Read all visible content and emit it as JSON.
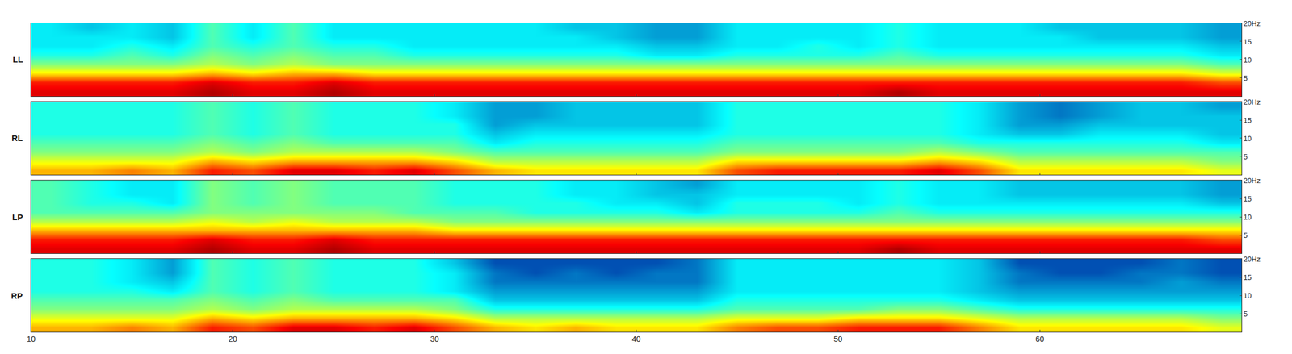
{
  "chart_data": {
    "type": "heatmap",
    "color": "Jet",
    "x": [
      11,
      13,
      15,
      17,
      19,
      21,
      23,
      25,
      27,
      29,
      31,
      33,
      35,
      37,
      39,
      41,
      43,
      45,
      47,
      49,
      51,
      53,
      55,
      57,
      59,
      61,
      63,
      65,
      67,
      69
    ],
    "y": [
      1.25,
      3.75,
      6.25,
      8.75,
      11.25,
      13.75,
      16.25,
      18.75
    ],
    "xlim": [
      10,
      70
    ],
    "xticks": [
      10,
      20,
      30,
      40,
      50,
      60
    ],
    "ylim": [
      0,
      20
    ],
    "yticks": [
      5,
      10,
      15,
      {
        "value": 20,
        "label": "20Hz"
      }
    ],
    "zlim": [
      0,
      10
    ],
    "panels": [
      {
        "name": "LL",
        "z": [
          [
            9,
            9,
            9,
            9,
            9.5,
            9,
            9,
            9.5,
            9,
            9,
            9,
            9,
            9,
            9,
            9,
            9,
            9,
            9,
            9,
            9,
            9,
            9.5,
            9,
            9,
            9,
            9,
            9,
            9,
            9,
            9
          ],
          [
            8.5,
            8.5,
            8.5,
            8.5,
            9,
            8.5,
            8.5,
            9,
            8.5,
            8.5,
            8.5,
            8.5,
            8.5,
            8.5,
            8.5,
            8.5,
            8.5,
            8.5,
            8.5,
            8.5,
            8.5,
            8.5,
            8.5,
            8.5,
            8.5,
            8.5,
            8.5,
            8.5,
            8.5,
            8
          ],
          [
            6.5,
            6.5,
            6.5,
            6.5,
            7,
            6.5,
            7,
            7,
            6.5,
            6.5,
            6.5,
            6.5,
            6.5,
            6.5,
            6.5,
            6.5,
            6.5,
            6.5,
            6.5,
            6.5,
            6.5,
            6.5,
            6.5,
            6.5,
            6.5,
            6.5,
            6.5,
            6.5,
            6.5,
            6
          ],
          [
            5,
            5,
            5,
            5,
            5.5,
            5,
            5.5,
            5,
            5,
            5,
            5,
            5,
            5,
            5,
            5,
            5,
            5,
            5,
            5,
            5,
            5,
            5,
            5,
            5,
            5,
            5,
            5,
            5,
            5,
            4.5
          ],
          [
            4,
            4,
            4.5,
            4,
            5,
            4.5,
            5,
            4.5,
            4.5,
            4,
            4,
            4,
            4,
            4,
            4,
            3.5,
            3.5,
            4,
            4,
            4,
            4,
            4.5,
            4,
            4,
            4,
            4,
            4,
            4,
            4,
            3.5
          ],
          [
            3.5,
            3.5,
            4,
            3.5,
            4.5,
            4,
            4.5,
            4,
            4,
            3.5,
            3.5,
            3.5,
            3.5,
            3.5,
            3.5,
            3,
            3,
            3.5,
            3.5,
            4,
            3.5,
            4,
            3.5,
            3.5,
            3.5,
            3.5,
            3.5,
            3.5,
            3.5,
            3
          ],
          [
            3.5,
            3.5,
            3.5,
            3,
            4.5,
            3.5,
            4.5,
            3.5,
            3.5,
            3.5,
            3.5,
            3.5,
            3.5,
            3.5,
            3,
            2.5,
            2.5,
            3.5,
            3.5,
            3.5,
            3.5,
            4,
            3.5,
            3.5,
            3.5,
            3.5,
            3,
            3,
            3,
            2.5
          ],
          [
            3.5,
            3,
            3.5,
            3,
            4.5,
            3.5,
            4.5,
            3.5,
            3.5,
            3.5,
            3.5,
            3.5,
            3.5,
            3,
            3,
            2.5,
            2.5,
            3.5,
            3.5,
            3.5,
            3.5,
            4,
            3.5,
            3.5,
            3.5,
            3,
            3,
            3,
            3,
            2.5
          ]
        ]
      },
      {
        "name": "RL",
        "z": [
          [
            7,
            7,
            7.5,
            7,
            8.5,
            8,
            9,
            9,
            8.5,
            9,
            8,
            7,
            6.5,
            6.5,
            6.5,
            6.5,
            6.5,
            8,
            8.5,
            8.5,
            8.5,
            8.5,
            9,
            8,
            6.5,
            6.5,
            6.5,
            6.5,
            6.5,
            6
          ],
          [
            6,
            6,
            6,
            6,
            7,
            6.5,
            7,
            7,
            7,
            7,
            6.5,
            5.5,
            5.5,
            5.5,
            5.5,
            5.5,
            5.5,
            6.5,
            6.5,
            6.5,
            6.5,
            6.5,
            7,
            6.5,
            5.5,
            5.5,
            5.5,
            5.5,
            5.5,
            5
          ],
          [
            5,
            5,
            5,
            5,
            5.5,
            5,
            5.5,
            5.5,
            5.5,
            5.5,
            5,
            4.5,
            4.5,
            4.5,
            4.5,
            4.5,
            4.5,
            5,
            5,
            5,
            5,
            5,
            5.5,
            5,
            4.5,
            4.5,
            4.5,
            4.5,
            4.5,
            4.5
          ],
          [
            4.5,
            4.5,
            4.5,
            4.5,
            5,
            4.5,
            5,
            4.5,
            4.5,
            4.5,
            4.5,
            3.5,
            4,
            4,
            4,
            4,
            4,
            4.5,
            4.5,
            4.5,
            4.5,
            4.5,
            4.5,
            4,
            4,
            4,
            4,
            4,
            4,
            3.5
          ],
          [
            4,
            4,
            4,
            4,
            4.5,
            4,
            4.5,
            4,
            4,
            4,
            4,
            3,
            3.5,
            3.5,
            3.5,
            3.5,
            3.5,
            4,
            4,
            4,
            4,
            4,
            4,
            3.5,
            3,
            3,
            3.5,
            3.5,
            3.5,
            3
          ],
          [
            4,
            4,
            4,
            4,
            4.5,
            4,
            4.5,
            4,
            4,
            4,
            4,
            2.5,
            3,
            3,
            3,
            3,
            3,
            4,
            4,
            4,
            4,
            4,
            4,
            3.5,
            2.5,
            2.5,
            3,
            3,
            3,
            3
          ],
          [
            4,
            4,
            4,
            4,
            4.5,
            4,
            4.5,
            4,
            4,
            4,
            3.5,
            2.5,
            2.5,
            3,
            3,
            3,
            3,
            4,
            4,
            4,
            4,
            4,
            4,
            3.5,
            2.5,
            2,
            2.5,
            3,
            3,
            3
          ],
          [
            4,
            4,
            4,
            4,
            4.5,
            4,
            4.5,
            4,
            4,
            4,
            3.5,
            2.5,
            2.5,
            3,
            3,
            3,
            3,
            4,
            4,
            4,
            4,
            4,
            4,
            3.5,
            2.5,
            2,
            2.5,
            3,
            3,
            2.5
          ]
        ]
      },
      {
        "name": "LP",
        "z": [
          [
            9,
            9,
            9,
            9,
            9.5,
            9,
            9,
            9.5,
            9,
            9,
            9,
            9,
            9,
            9,
            9,
            9,
            9,
            9,
            9,
            9,
            9,
            9.5,
            9,
            9,
            9,
            9,
            9,
            9,
            9,
            9
          ],
          [
            8.5,
            8.5,
            8.5,
            8.5,
            9,
            8.5,
            8.5,
            9,
            8.5,
            8.5,
            8.5,
            8.5,
            8.5,
            8.5,
            8.5,
            8.5,
            8.5,
            8.5,
            8.5,
            8.5,
            8.5,
            8.5,
            8.5,
            8.5,
            8.5,
            8.5,
            8.5,
            8.5,
            8.5,
            8
          ],
          [
            7,
            7,
            7,
            7,
            7,
            7,
            7,
            7,
            7,
            7,
            6.5,
            6.5,
            6.5,
            6.5,
            6.5,
            6.5,
            6.5,
            6.5,
            6.5,
            6.5,
            6.5,
            6.5,
            6.5,
            6.5,
            6.5,
            6.5,
            6.5,
            6.5,
            6.5,
            6.5
          ],
          [
            5.5,
            5.5,
            5.5,
            5.5,
            6,
            5.5,
            6,
            5.5,
            5.5,
            5.5,
            5,
            5,
            5,
            5,
            5,
            5,
            5,
            5,
            5,
            5,
            5,
            5,
            5,
            5,
            5,
            5,
            5,
            5,
            5,
            5
          ],
          [
            4.5,
            4.5,
            4.5,
            4.5,
            5,
            5,
            5,
            5,
            5,
            4.5,
            4.5,
            4.5,
            4,
            4,
            4,
            4,
            3.5,
            4,
            4,
            4,
            4,
            4.5,
            4,
            4,
            4,
            4,
            4,
            4,
            4,
            4
          ],
          [
            4.5,
            4,
            4,
            3.5,
            5,
            4.5,
            5,
            4.5,
            4.5,
            4.5,
            4,
            4,
            4,
            4,
            3.5,
            3.5,
            3,
            4,
            4,
            4,
            3.5,
            4,
            3.5,
            3.5,
            3.5,
            3.5,
            3.5,
            3.5,
            3.5,
            3
          ],
          [
            4.5,
            4,
            3.5,
            3.5,
            5,
            4.5,
            5,
            4.5,
            4.5,
            4.5,
            4,
            4,
            4,
            3.5,
            3.5,
            3,
            3,
            3.5,
            3.5,
            3.5,
            3.5,
            4,
            3.5,
            3.5,
            3,
            3,
            3,
            3,
            3,
            2.5
          ],
          [
            4.5,
            4,
            3.5,
            3.5,
            5,
            4.5,
            5,
            4.5,
            4.5,
            4.5,
            4,
            4,
            4,
            3.5,
            3.5,
            3,
            2.5,
            3.5,
            3.5,
            3.5,
            3.5,
            4,
            3.5,
            3.5,
            3,
            3,
            3,
            3,
            3,
            2.5
          ]
        ]
      },
      {
        "name": "RP",
        "z": [
          [
            7,
            7,
            7.5,
            7,
            8.5,
            8,
            9,
            9,
            8.5,
            9,
            8,
            7,
            6.5,
            7,
            6.5,
            6.5,
            6.5,
            7.5,
            8,
            8,
            8.5,
            8.5,
            8.5,
            7.5,
            6.5,
            6.5,
            6.5,
            6.5,
            6.5,
            6
          ],
          [
            6,
            6,
            6,
            6,
            7,
            6.5,
            7,
            7,
            7,
            7,
            6.5,
            5.5,
            5.5,
            5.5,
            5.5,
            5.5,
            5.5,
            6,
            6,
            6,
            6.5,
            6.5,
            6.5,
            6,
            5.5,
            5.5,
            5.5,
            5.5,
            5.5,
            5
          ],
          [
            5,
            5,
            5,
            5,
            5.5,
            5,
            5.5,
            5.5,
            5.5,
            5.5,
            5,
            4,
            4,
            4,
            4,
            4,
            4,
            4.5,
            4.5,
            4.5,
            4.5,
            5,
            5,
            4.5,
            4,
            4,
            4,
            4,
            4,
            4
          ],
          [
            4.5,
            4.5,
            4.5,
            4.5,
            5,
            4.5,
            5,
            4.5,
            4.5,
            4.5,
            4.5,
            3,
            3,
            3,
            3,
            3,
            3,
            4,
            4,
            4,
            4,
            4,
            4,
            3.5,
            3,
            3,
            3,
            3,
            3,
            3
          ],
          [
            4,
            4,
            4,
            3.5,
            4.5,
            4,
            4.5,
            4,
            4,
            4,
            3.5,
            2.5,
            2.5,
            2.5,
            2.5,
            2.5,
            2.5,
            3.5,
            3.5,
            3.5,
            3.5,
            3.5,
            3.5,
            3,
            2.5,
            2.5,
            2.5,
            2.5,
            2.5,
            2.5
          ],
          [
            4,
            4,
            3.5,
            3,
            4.5,
            4,
            4.5,
            4,
            4,
            4,
            3.5,
            2,
            2,
            2,
            2,
            2,
            2,
            3.5,
            3.5,
            3.5,
            3.5,
            3.5,
            3.5,
            3,
            2,
            2,
            2,
            2,
            2.5,
            2
          ],
          [
            4,
            4,
            3.5,
            2.5,
            4.5,
            4,
            4.5,
            4,
            4,
            4,
            3.5,
            2,
            1.5,
            2,
            1.5,
            2,
            2,
            3.5,
            3.5,
            3.5,
            3.5,
            3.5,
            3.5,
            3,
            2,
            1.5,
            1.5,
            2,
            2,
            1.5
          ],
          [
            4,
            4,
            3.5,
            2.5,
            4.5,
            4,
            4.5,
            4,
            4,
            4,
            3,
            1.5,
            1.5,
            1.5,
            1.5,
            1.5,
            2,
            3.5,
            3.5,
            3.5,
            3.5,
            3.5,
            3.5,
            3,
            1.5,
            1.5,
            1.5,
            1.5,
            2,
            1.5
          ]
        ]
      }
    ]
  }
}
